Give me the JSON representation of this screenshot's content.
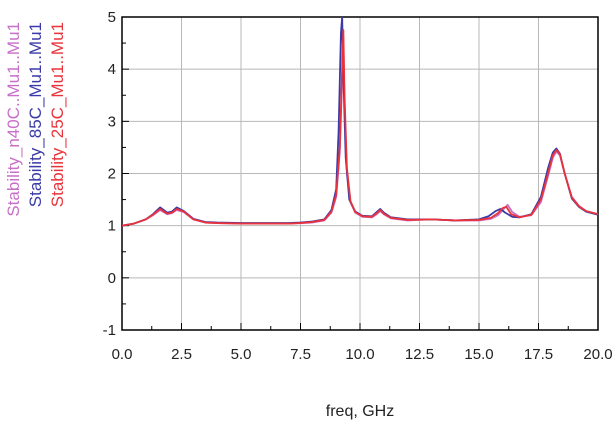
{
  "chart_data": {
    "type": "line",
    "xlabel": "freq, GHz",
    "ylabel": "",
    "xlim": [
      0.0,
      20.0
    ],
    "ylim": [
      -1,
      5
    ],
    "x_ticks": [
      "0.0",
      "2.5",
      "5.0",
      "7.5",
      "10.0",
      "12.5",
      "15.0",
      "17.5",
      "20.0"
    ],
    "y_ticks": [
      "-1",
      "0",
      "1",
      "2",
      "3",
      "4",
      "5"
    ],
    "grid": true,
    "legend_position": "left (rotated)",
    "series": [
      {
        "name": "Stability_n40C..Mu1..Mu1",
        "color": "#c86fc8",
        "x": [
          0,
          0.5,
          1.0,
          1.3,
          1.6,
          1.9,
          2.1,
          2.3,
          2.6,
          3.0,
          3.5,
          4.0,
          5.0,
          6.0,
          7.0,
          7.5,
          8.0,
          8.5,
          8.8,
          9.0,
          9.15,
          9.25,
          9.3,
          9.35,
          9.45,
          9.6,
          9.8,
          10.1,
          10.5,
          10.7,
          10.85,
          11.0,
          11.3,
          12.0,
          13.0,
          14.0,
          15.0,
          15.5,
          15.8,
          16.0,
          16.2,
          16.4,
          16.7,
          17.2,
          17.6,
          17.9,
          18.1,
          18.25,
          18.4,
          18.6,
          18.9,
          19.2,
          19.5,
          20.0
        ],
        "y": [
          1.0,
          1.04,
          1.12,
          1.2,
          1.3,
          1.22,
          1.24,
          1.3,
          1.26,
          1.12,
          1.06,
          1.05,
          1.04,
          1.04,
          1.04,
          1.05,
          1.06,
          1.1,
          1.25,
          1.55,
          2.4,
          3.8,
          4.6,
          3.3,
          2.0,
          1.45,
          1.25,
          1.17,
          1.16,
          1.22,
          1.28,
          1.22,
          1.14,
          1.1,
          1.12,
          1.1,
          1.1,
          1.13,
          1.2,
          1.3,
          1.4,
          1.26,
          1.17,
          1.2,
          1.45,
          1.95,
          2.3,
          2.42,
          2.35,
          2.0,
          1.55,
          1.38,
          1.28,
          1.22
        ]
      },
      {
        "name": "Stability_85C_Mu1..Mu1",
        "color": "#3a3aa8",
        "x": [
          0,
          0.5,
          1.0,
          1.3,
          1.6,
          1.9,
          2.1,
          2.3,
          2.6,
          3.0,
          3.5,
          4.0,
          5.0,
          6.0,
          7.0,
          7.5,
          8.0,
          8.5,
          8.8,
          9.0,
          9.1,
          9.2,
          9.25,
          9.3,
          9.4,
          9.55,
          9.8,
          10.1,
          10.5,
          10.7,
          10.85,
          11.0,
          11.3,
          12.0,
          13.0,
          14.0,
          15.0,
          15.4,
          15.7,
          15.9,
          16.1,
          16.4,
          16.7,
          17.2,
          17.6,
          17.9,
          18.1,
          18.25,
          18.4,
          18.6,
          18.9,
          19.2,
          19.5,
          20.0
        ],
        "y": [
          1.0,
          1.04,
          1.12,
          1.22,
          1.35,
          1.25,
          1.27,
          1.35,
          1.28,
          1.13,
          1.07,
          1.06,
          1.05,
          1.05,
          1.05,
          1.06,
          1.08,
          1.12,
          1.3,
          1.7,
          2.8,
          4.7,
          5.0,
          3.9,
          2.3,
          1.5,
          1.27,
          1.19,
          1.18,
          1.26,
          1.32,
          1.25,
          1.16,
          1.12,
          1.12,
          1.1,
          1.12,
          1.18,
          1.28,
          1.32,
          1.25,
          1.17,
          1.16,
          1.22,
          1.55,
          2.1,
          2.4,
          2.48,
          2.38,
          2.0,
          1.52,
          1.36,
          1.27,
          1.21
        ]
      },
      {
        "name": "Stability_25C_Mu1..Mu1",
        "color": "#e8333a",
        "x": [
          0,
          0.5,
          1.0,
          1.3,
          1.6,
          1.9,
          2.1,
          2.3,
          2.6,
          3.0,
          3.5,
          4.0,
          5.0,
          6.0,
          7.0,
          7.5,
          8.0,
          8.5,
          8.8,
          9.0,
          9.15,
          9.25,
          9.3,
          9.35,
          9.45,
          9.6,
          9.8,
          10.1,
          10.5,
          10.7,
          10.85,
          11.0,
          11.3,
          12.0,
          13.0,
          14.0,
          15.0,
          15.5,
          15.8,
          16.0,
          16.15,
          16.35,
          16.7,
          17.2,
          17.6,
          17.9,
          18.1,
          18.25,
          18.4,
          18.6,
          18.9,
          19.2,
          19.5,
          20.0
        ],
        "y": [
          1.0,
          1.04,
          1.12,
          1.21,
          1.32,
          1.23,
          1.25,
          1.32,
          1.27,
          1.12,
          1.06,
          1.05,
          1.04,
          1.04,
          1.04,
          1.05,
          1.07,
          1.11,
          1.27,
          1.6,
          2.5,
          4.0,
          4.75,
          3.5,
          2.1,
          1.47,
          1.26,
          1.18,
          1.17,
          1.24,
          1.3,
          1.23,
          1.15,
          1.11,
          1.12,
          1.1,
          1.11,
          1.15,
          1.24,
          1.34,
          1.36,
          1.22,
          1.16,
          1.21,
          1.5,
          2.0,
          2.35,
          2.45,
          2.37,
          2.0,
          1.54,
          1.37,
          1.28,
          1.22
        ]
      }
    ]
  }
}
